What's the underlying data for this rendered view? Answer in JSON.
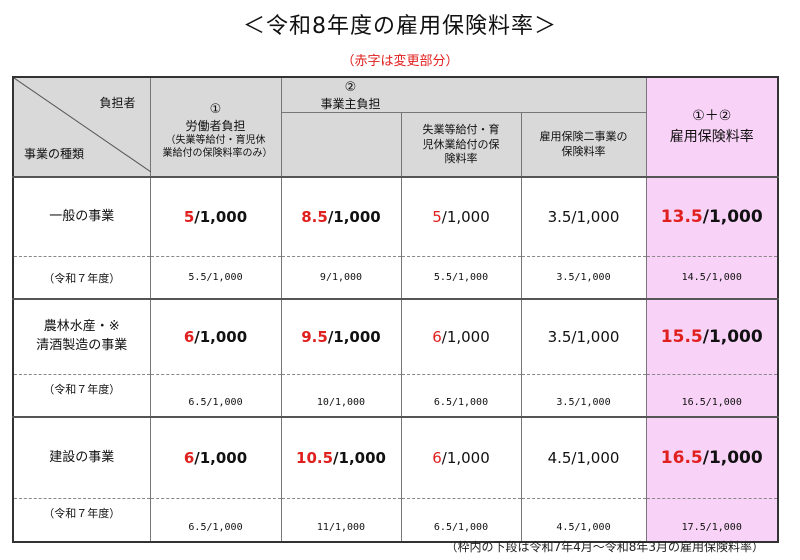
{
  "title": "＜令和8年度の雇用保険料率＞",
  "note": "（赤字は変更部分）",
  "footnote": "（枠内の下段は令和7年4月～令和8年3月の雇用保険料率）",
  "colors": {
    "red": "#e0201e",
    "highlight": "#f9d2f7",
    "header_gray": "#d9d9d9"
  },
  "header": {
    "corner_top": "負担者",
    "corner_bottom": "事業の種類",
    "worker_num": "①",
    "worker_title": "労働者負担",
    "worker_sub": "（失業等給付・育児休業給付の保険料率のみ）",
    "employer_num": "②",
    "employer_title": "事業主負担",
    "unemployment_title": "失業等給付・育児休業給付の保険料率",
    "two_programs_title": "雇用保険二事業の保険料率",
    "total_num": "①＋②",
    "total_title": "雇用保険料率"
  },
  "rows": [
    {
      "label": "一般の事業",
      "worker": {
        "changed": "5",
        "rest": "/1,000"
      },
      "employer": {
        "changed": "8.5",
        "rest": "/1,000"
      },
      "unemployment": {
        "changed": "5",
        "rest": "/1,000"
      },
      "two_programs": "3.5/1,000",
      "total": {
        "changed": "13.5",
        "rest": "/1,000"
      },
      "prev_label": "（令和７年度）",
      "prev": {
        "worker": "5.5/1,000",
        "employer": "9/1,000",
        "unemployment": "5.5/1,000",
        "two_programs": "3.5/1,000",
        "total": "14.5/1,000"
      }
    },
    {
      "label_line1": "農林水産・※",
      "label_line2": "清酒製造の事業",
      "worker": {
        "changed": "6",
        "rest": "/1,000"
      },
      "employer": {
        "changed": "9.5",
        "rest": "/1,000"
      },
      "unemployment": {
        "changed": "6",
        "rest": "/1,000"
      },
      "two_programs": "3.5/1,000",
      "total": {
        "changed": "15.5",
        "rest": "/1,000"
      },
      "prev_label": "（令和７年度）",
      "prev": {
        "worker": "6.5/1,000",
        "employer": "10/1,000",
        "unemployment": "6.5/1,000",
        "two_programs": "3.5/1,000",
        "total": "16.5/1,000"
      }
    },
    {
      "label": "建設の事業",
      "worker": {
        "changed": "6",
        "rest": "/1,000"
      },
      "employer": {
        "changed": "10.5",
        "rest": "/1,000"
      },
      "unemployment": {
        "changed": "6",
        "rest": "/1,000"
      },
      "two_programs": "4.5/1,000",
      "total": {
        "changed": "16.5",
        "rest": "/1,000"
      },
      "prev_label": "（令和７年度）",
      "prev": {
        "worker": "6.5/1,000",
        "employer": "11/1,000",
        "unemployment": "6.5/1,000",
        "two_programs": "4.5/1,000",
        "total": "17.5/1,000"
      }
    }
  ]
}
